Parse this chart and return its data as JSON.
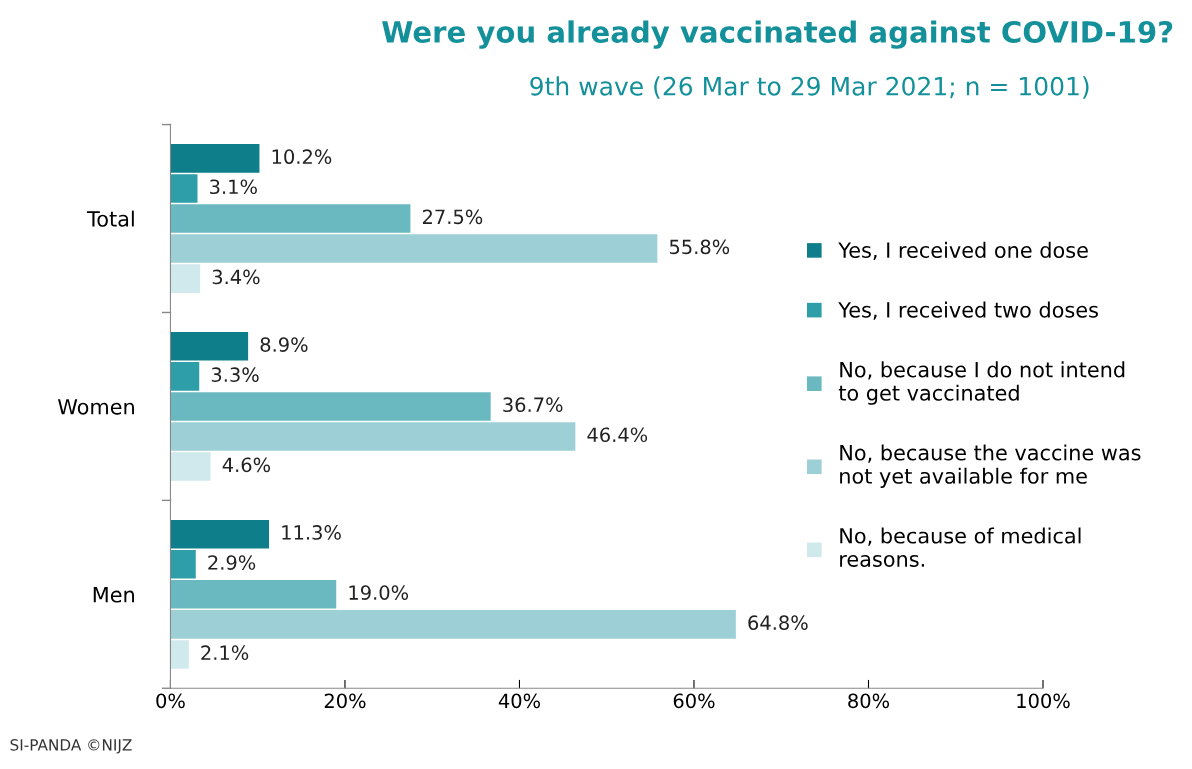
{
  "chart_data": {
    "type": "bar",
    "orientation": "horizontal",
    "title": "Were you already vaccinated against COVID-19?",
    "subtitle": "9th wave (26 Mar to 29 Mar 2021; n = 1001)",
    "categories": [
      "Total",
      "Women",
      "Men"
    ],
    "series": [
      {
        "name": "Yes, I received one dose",
        "color": "#0e7f8a",
        "values": [
          10.2,
          8.9,
          11.3
        ],
        "value_labels": [
          "10.2%",
          "8.9%",
          "11.3%"
        ]
      },
      {
        "name": "Yes, I received two doses",
        "color": "#2e9ea8",
        "values": [
          3.1,
          3.3,
          2.9
        ],
        "value_labels": [
          "3.1%",
          "3.3%",
          "2.9%"
        ]
      },
      {
        "name": "No, because I do not intend\nto get vaccinated",
        "color": "#6ab8c0",
        "values": [
          27.5,
          36.7,
          19.0
        ],
        "value_labels": [
          "27.5%",
          "36.7%",
          "19.0%"
        ]
      },
      {
        "name": "No, because the vaccine was\nnot yet available for me",
        "color": "#9dd0d6",
        "values": [
          55.8,
          46.4,
          64.8
        ],
        "value_labels": [
          "55.8%",
          "46.4%",
          "64.8%"
        ]
      },
      {
        "name": "No, because of medical\nreasons.",
        "color": "#d0e9ec",
        "values": [
          3.4,
          4.6,
          2.1
        ],
        "value_labels": [
          "3.4%",
          "4.6%",
          "2.1%"
        ]
      }
    ],
    "xlim": [
      0,
      100
    ],
    "xticks": [
      {
        "value": 0,
        "label": "0%"
      },
      {
        "value": 20,
        "label": "20%"
      },
      {
        "value": 40,
        "label": "40%"
      },
      {
        "value": 60,
        "label": "60%"
      },
      {
        "value": 80,
        "label": "80%"
      },
      {
        "value": 100,
        "label": "100%"
      }
    ],
    "grid": false,
    "legend": "right",
    "annotations": [
      "SI-PANDA ©NIJZ"
    ]
  }
}
